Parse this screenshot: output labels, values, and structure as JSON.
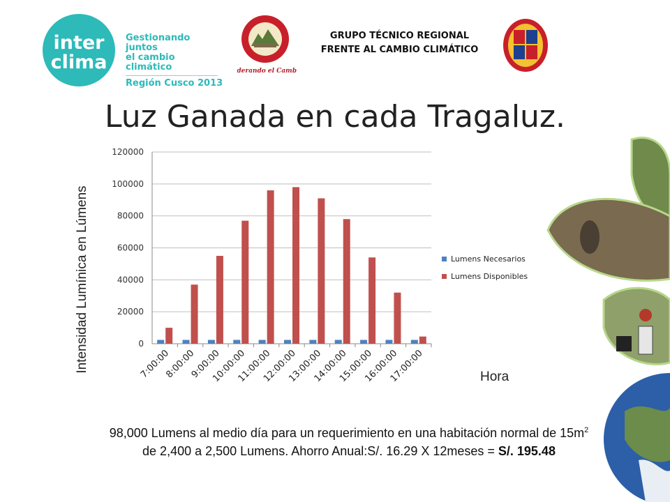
{
  "header": {
    "logo_line1": "inter",
    "logo_line2": "clima",
    "logo_tag1": "Gestionando juntos",
    "logo_tag2": "el cambio climático",
    "logo_tag3": "Región Cusco 2013",
    "seal_caption": "Liderando el Cambio",
    "group_line1": "GRUPO TÉCNICO REGIONAL",
    "group_line2": "FRENTE AL CAMBIO CLIMÁTICO"
  },
  "slide_title": "Luz Ganada en cada Tragaluz.",
  "y_axis_label": "Intensidad Lumínica en Lúmens",
  "x_axis_label": "Hora",
  "caption": {
    "line1_a": "98,000 Lumens al medio día para un requerimiento en una habitación normal de 15m",
    "line1_sup": "2",
    "line2_a": "de 2,400 a 2,500 Lumens. Ahorro Anual:S/. 16.29 X 12meses = ",
    "line2_bold": "S/. 195.48"
  },
  "chart_data": {
    "type": "bar",
    "categories": [
      "7:00:00",
      "8:00:00",
      "9:00:00",
      "10:00:00",
      "11:00:00",
      "12:00:00",
      "13:00:00",
      "14:00:00",
      "15:00:00",
      "16:00:00",
      "17:00:00"
    ],
    "series": [
      {
        "name": "Lumens Necesarios",
        "color": "#4f81bd",
        "values": [
          2400,
          2400,
          2400,
          2400,
          2400,
          2400,
          2400,
          2400,
          2400,
          2400,
          2400
        ]
      },
      {
        "name": "Lumens Disponibles",
        "color": "#c0504d",
        "values": [
          10000,
          37000,
          55000,
          77000,
          96000,
          98000,
          91000,
          78000,
          54000,
          32000,
          4500
        ]
      }
    ],
    "ylim": [
      0,
      120000
    ],
    "yticks": [
      "0",
      "20000",
      "40000",
      "60000",
      "80000",
      "100000",
      "120000"
    ],
    "grid": true,
    "legend": "right"
  }
}
